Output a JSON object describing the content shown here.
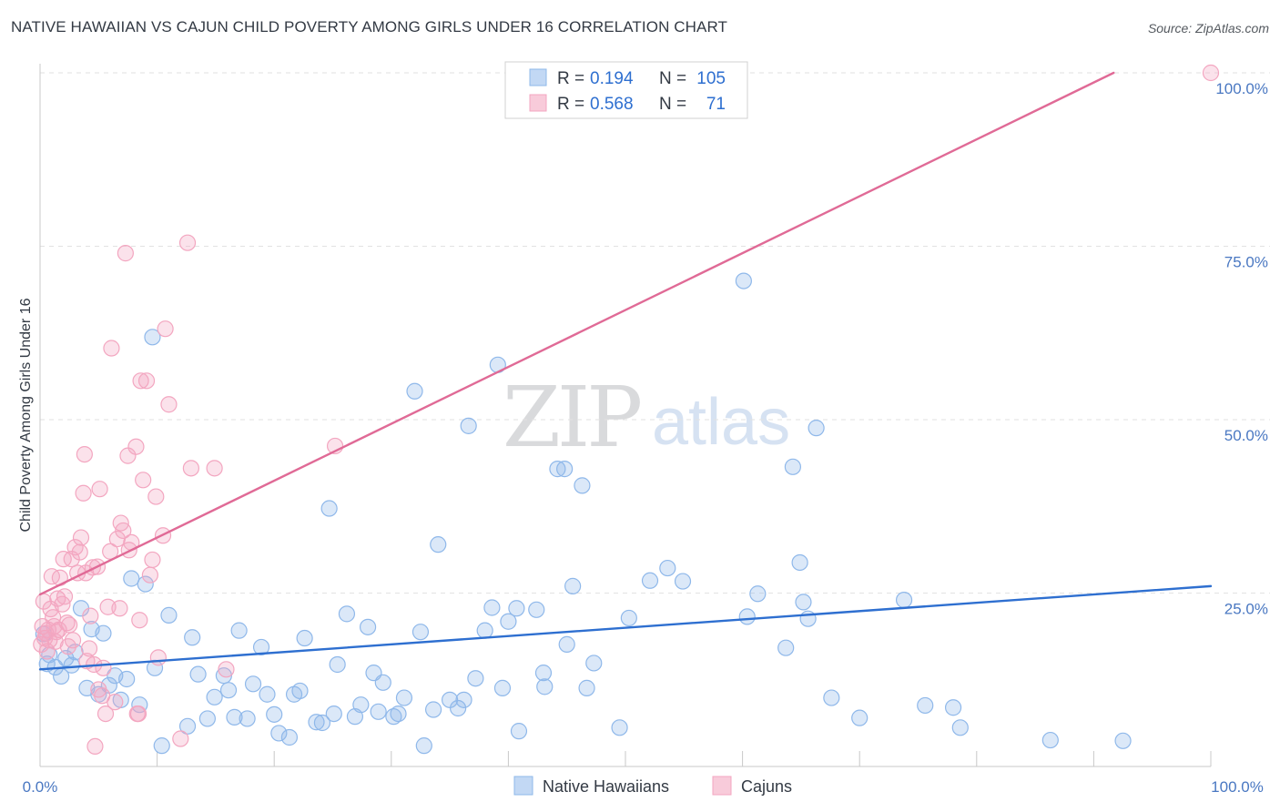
{
  "chart_data": {
    "type": "scatter",
    "title": "NATIVE HAWAIIAN VS CAJUN CHILD POVERTY AMONG GIRLS UNDER 16 CORRELATION CHART",
    "source": "Source: ZipAtlas.com",
    "ylabel": "Child Poverty Among Girls Under 16",
    "xlabel": "",
    "xlim": [
      0,
      100
    ],
    "ylim": [
      0,
      100
    ],
    "x_tick_labels": {
      "min": "0.0%",
      "max": "100.0%"
    },
    "y_ticks": [
      {
        "value": 25,
        "label": "25.0%"
      },
      {
        "value": 50,
        "label": "50.0%"
      },
      {
        "value": 75,
        "label": "75.0%"
      },
      {
        "value": 100,
        "label": "100.0%"
      }
    ],
    "grid": true,
    "watermark": {
      "zip": "ZIP",
      "atlas": "atlas"
    },
    "stats": {
      "r_label": "R =",
      "n_label": "N =",
      "rows": [
        {
          "r": "0.194",
          "n": "105"
        },
        {
          "r": "0.568",
          "n": "71"
        }
      ]
    },
    "legend_position": "bottom-center",
    "series": [
      {
        "name": "Native Hawaiians",
        "color": "#8fb8ea",
        "line_color": "#2e6fd0",
        "trend": {
          "x0": 0,
          "y0": 14.0,
          "x1": 100,
          "y1": 26.0
        },
        "points": [
          [
            0.3,
            19.1
          ],
          [
            0.6,
            14.8
          ],
          [
            0.8,
            16.1
          ],
          [
            1.3,
            14.3
          ],
          [
            1.8,
            13.0
          ],
          [
            2.2,
            15.6
          ],
          [
            2.7,
            14.6
          ],
          [
            3.0,
            16.5
          ],
          [
            3.5,
            22.8
          ],
          [
            4.0,
            11.3
          ],
          [
            4.4,
            19.8
          ],
          [
            5.0,
            10.4
          ],
          [
            5.4,
            19.2
          ],
          [
            5.9,
            11.7
          ],
          [
            6.4,
            13.1
          ],
          [
            6.9,
            9.6
          ],
          [
            7.4,
            12.6
          ],
          [
            7.8,
            27.1
          ],
          [
            8.5,
            8.9
          ],
          [
            9.0,
            26.3
          ],
          [
            9.6,
            61.9
          ],
          [
            9.8,
            14.2
          ],
          [
            10.4,
            3.0
          ],
          [
            11.0,
            21.8
          ],
          [
            12.6,
            5.8
          ],
          [
            13.0,
            18.6
          ],
          [
            13.5,
            13.3
          ],
          [
            14.3,
            6.9
          ],
          [
            14.9,
            10.0
          ],
          [
            15.7,
            13.1
          ],
          [
            16.1,
            11.0
          ],
          [
            16.6,
            7.1
          ],
          [
            17.0,
            19.6
          ],
          [
            17.7,
            6.9
          ],
          [
            18.2,
            11.9
          ],
          [
            18.9,
            17.2
          ],
          [
            19.4,
            10.4
          ],
          [
            20.0,
            7.5
          ],
          [
            20.4,
            4.8
          ],
          [
            21.3,
            4.2
          ],
          [
            21.7,
            10.4
          ],
          [
            22.2,
            10.9
          ],
          [
            22.6,
            18.5
          ],
          [
            23.6,
            6.4
          ],
          [
            24.1,
            6.3
          ],
          [
            24.7,
            37.2
          ],
          [
            25.1,
            7.6
          ],
          [
            25.4,
            14.7
          ],
          [
            26.2,
            22.0
          ],
          [
            26.9,
            7.2
          ],
          [
            27.4,
            8.9
          ],
          [
            28.0,
            20.1
          ],
          [
            28.5,
            13.5
          ],
          [
            28.9,
            7.9
          ],
          [
            29.3,
            12.1
          ],
          [
            30.2,
            7.2
          ],
          [
            30.6,
            7.6
          ],
          [
            31.1,
            9.9
          ],
          [
            32.0,
            54.1
          ],
          [
            32.5,
            19.4
          ],
          [
            32.8,
            3.0
          ],
          [
            33.6,
            8.2
          ],
          [
            34.0,
            32.0
          ],
          [
            35.0,
            9.6
          ],
          [
            35.7,
            8.4
          ],
          [
            36.2,
            9.6
          ],
          [
            36.6,
            49.1
          ],
          [
            37.2,
            12.7
          ],
          [
            38.0,
            19.6
          ],
          [
            38.6,
            22.9
          ],
          [
            39.1,
            57.9
          ],
          [
            39.5,
            11.3
          ],
          [
            40.0,
            20.9
          ],
          [
            40.7,
            22.8
          ],
          [
            40.9,
            5.1
          ],
          [
            42.4,
            22.6
          ],
          [
            43.0,
            13.5
          ],
          [
            43.1,
            11.5
          ],
          [
            44.2,
            42.9
          ],
          [
            44.8,
            42.9
          ],
          [
            45.0,
            17.6
          ],
          [
            45.5,
            26.0
          ],
          [
            46.3,
            40.5
          ],
          [
            46.7,
            11.3
          ],
          [
            47.3,
            14.9
          ],
          [
            49.5,
            5.6
          ],
          [
            50.3,
            21.4
          ],
          [
            52.1,
            26.8
          ],
          [
            53.6,
            28.6
          ],
          [
            54.9,
            26.7
          ],
          [
            60.1,
            70.0
          ],
          [
            60.4,
            21.6
          ],
          [
            61.3,
            24.9
          ],
          [
            63.7,
            17.1
          ],
          [
            64.3,
            43.2
          ],
          [
            64.9,
            29.4
          ],
          [
            65.2,
            23.7
          ],
          [
            65.6,
            21.3
          ],
          [
            66.3,
            48.8
          ],
          [
            67.6,
            9.9
          ],
          [
            70.0,
            7.0
          ],
          [
            73.8,
            24.0
          ],
          [
            75.6,
            8.8
          ],
          [
            78.0,
            8.5
          ],
          [
            78.6,
            5.6
          ],
          [
            86.3,
            3.8
          ],
          [
            92.5,
            3.7
          ]
        ]
      },
      {
        "name": "Cajuns",
        "color": "#f3a6c0",
        "line_color": "#e06a96",
        "trend": {
          "x0": 0,
          "y0": 24.8,
          "x1": 91.7,
          "y1": 100
        },
        "points": [
          [
            0.1,
            17.6
          ],
          [
            0.2,
            20.2
          ],
          [
            0.3,
            23.8
          ],
          [
            0.4,
            18.5
          ],
          [
            0.5,
            19.2
          ],
          [
            0.6,
            16.6
          ],
          [
            0.7,
            19.7
          ],
          [
            0.8,
            18.2
          ],
          [
            0.9,
            22.7
          ],
          [
            1.0,
            27.4
          ],
          [
            1.1,
            21.5
          ],
          [
            1.2,
            20.2
          ],
          [
            1.3,
            18.0
          ],
          [
            1.4,
            19.4
          ],
          [
            1.5,
            24.2
          ],
          [
            1.6,
            19.7
          ],
          [
            1.7,
            27.2
          ],
          [
            1.9,
            23.4
          ],
          [
            2.0,
            29.9
          ],
          [
            2.1,
            24.5
          ],
          [
            2.3,
            20.7
          ],
          [
            2.4,
            17.3
          ],
          [
            2.5,
            20.4
          ],
          [
            2.7,
            29.9
          ],
          [
            2.8,
            18.2
          ],
          [
            3.0,
            31.6
          ],
          [
            3.2,
            27.9
          ],
          [
            3.4,
            30.9
          ],
          [
            3.5,
            33.0
          ],
          [
            3.7,
            39.4
          ],
          [
            3.8,
            45.0
          ],
          [
            3.9,
            27.9
          ],
          [
            4.0,
            15.2
          ],
          [
            4.2,
            17.0
          ],
          [
            4.3,
            21.7
          ],
          [
            4.5,
            28.7
          ],
          [
            4.6,
            14.7
          ],
          [
            4.7,
            2.9
          ],
          [
            4.9,
            28.8
          ],
          [
            5.0,
            11.1
          ],
          [
            5.1,
            40.0
          ],
          [
            5.3,
            10.2
          ],
          [
            5.4,
            14.2
          ],
          [
            5.6,
            7.6
          ],
          [
            5.8,
            23.0
          ],
          [
            6.0,
            31.0
          ],
          [
            6.1,
            60.3
          ],
          [
            6.4,
            9.3
          ],
          [
            6.6,
            32.8
          ],
          [
            6.8,
            22.8
          ],
          [
            6.9,
            35.1
          ],
          [
            7.1,
            34.0
          ],
          [
            7.3,
            74.0
          ],
          [
            7.5,
            44.8
          ],
          [
            7.6,
            31.2
          ],
          [
            7.8,
            32.3
          ],
          [
            8.2,
            46.1
          ],
          [
            8.3,
            7.6
          ],
          [
            8.4,
            7.6
          ],
          [
            8.5,
            21.1
          ],
          [
            8.6,
            55.6
          ],
          [
            8.8,
            41.3
          ],
          [
            9.1,
            55.6
          ],
          [
            9.4,
            27.6
          ],
          [
            9.6,
            29.8
          ],
          [
            9.9,
            38.9
          ],
          [
            10.1,
            15.7
          ],
          [
            10.5,
            33.3
          ],
          [
            10.7,
            63.1
          ],
          [
            11.0,
            52.2
          ],
          [
            12.0,
            4.0
          ],
          [
            12.6,
            75.5
          ],
          [
            12.9,
            43.0
          ],
          [
            14.9,
            43.0
          ],
          [
            15.9,
            14.0
          ],
          [
            25.2,
            46.2
          ],
          [
            100.0,
            100.0
          ]
        ]
      }
    ]
  }
}
